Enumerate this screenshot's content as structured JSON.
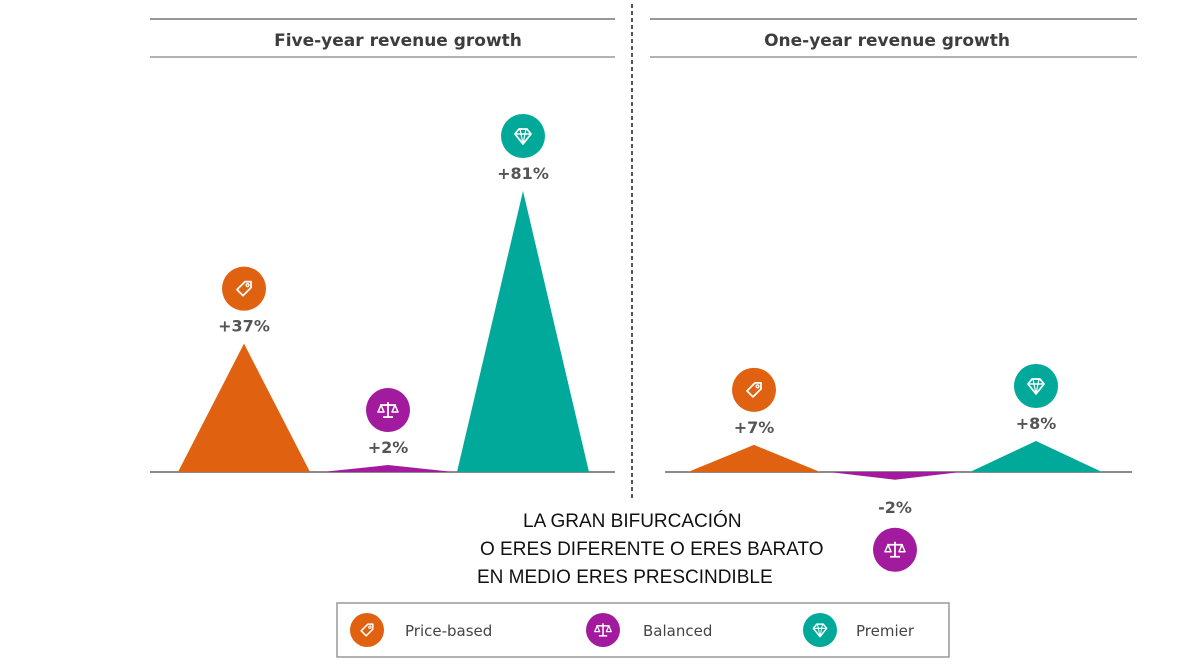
{
  "caption": {
    "line1": "LA GRAN BIFURCACIÓN",
    "line2": "O ERES DIFERENTE O ERES BARATO",
    "line3": "EN MEDIO ERES PRESCINDIBLE"
  },
  "colors": {
    "price_based": "#E0610F",
    "balanced": "#A21B9E",
    "premier": "#00A99A"
  },
  "icons": {
    "price_based": "price-tag-icon",
    "balanced": "balance-scale-icon",
    "premier": "diamond-icon"
  },
  "chart_data": [
    {
      "type": "area",
      "title": "Five-year revenue growth",
      "categories": [
        "Price-based",
        "Balanced",
        "Premier"
      ],
      "values": [
        37,
        2,
        81
      ],
      "value_labels": [
        "+37%",
        "+2%",
        "+81%"
      ],
      "unit": "%",
      "ylim": [
        0,
        81
      ]
    },
    {
      "type": "area",
      "title": "One-year revenue growth",
      "categories": [
        "Price-based",
        "Balanced",
        "Premier"
      ],
      "values": [
        7,
        -2,
        8
      ],
      "value_labels": [
        "+7%",
        "-2%",
        "+8%"
      ],
      "unit": "%"
    }
  ],
  "legend": {
    "items": [
      {
        "key": "price_based",
        "label": "Price-based"
      },
      {
        "key": "balanced",
        "label": "Balanced"
      },
      {
        "key": "premier",
        "label": "Premier"
      }
    ],
    "placement": "bottom-center"
  }
}
